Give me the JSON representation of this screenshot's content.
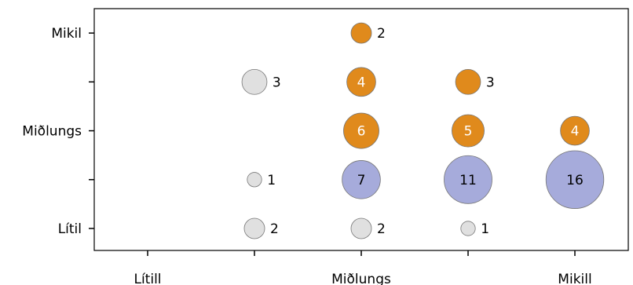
{
  "chart_data": {
    "type": "scatter",
    "subtype": "bubble",
    "x_ticks": [
      {
        "value": 1,
        "label": "Lítill"
      },
      {
        "value": 2,
        "label": ""
      },
      {
        "value": 3,
        "label": "Miðlungs"
      },
      {
        "value": 4,
        "label": ""
      },
      {
        "value": 5,
        "label": "Mikill"
      }
    ],
    "y_ticks": [
      {
        "value": 1,
        "label": "Lítil"
      },
      {
        "value": 2,
        "label": ""
      },
      {
        "value": 3,
        "label": "Miðlungs"
      },
      {
        "value": 4,
        "label": ""
      },
      {
        "value": 5,
        "label": "Mikil"
      }
    ],
    "xlim": [
      0.5,
      5.5
    ],
    "ylim": [
      0.55,
      5.5
    ],
    "grid": false,
    "colors": {
      "gray": "#e0e0e0",
      "orange": "#e08a1c",
      "blue": "#a6abdb",
      "outline": "#777777"
    },
    "points": [
      {
        "x": 3,
        "y": 5,
        "size": 2,
        "color": "orange",
        "label": "2",
        "label_position": "right"
      },
      {
        "x": 2,
        "y": 4,
        "size": 3,
        "color": "gray",
        "label": "3",
        "label_position": "right"
      },
      {
        "x": 3,
        "y": 4,
        "size": 4,
        "color": "orange",
        "label": "4",
        "label_position": "inside"
      },
      {
        "x": 4,
        "y": 4,
        "size": 3,
        "color": "orange",
        "label": "3",
        "label_position": "right"
      },
      {
        "x": 3,
        "y": 3,
        "size": 6,
        "color": "orange",
        "label": "6",
        "label_position": "inside"
      },
      {
        "x": 4,
        "y": 3,
        "size": 5,
        "color": "orange",
        "label": "5",
        "label_position": "inside"
      },
      {
        "x": 5,
        "y": 3,
        "size": 4,
        "color": "orange",
        "label": "4",
        "label_position": "inside"
      },
      {
        "x": 2,
        "y": 2,
        "size": 1,
        "color": "gray",
        "label": "1",
        "label_position": "right"
      },
      {
        "x": 3,
        "y": 2,
        "size": 7,
        "color": "blue",
        "label": "7",
        "label_position": "inside"
      },
      {
        "x": 4,
        "y": 2,
        "size": 11,
        "color": "blue",
        "label": "11",
        "label_position": "inside"
      },
      {
        "x": 5,
        "y": 2,
        "size": 16,
        "color": "blue",
        "label": "16",
        "label_position": "inside"
      },
      {
        "x": 2,
        "y": 1,
        "size": 2,
        "color": "gray",
        "label": "2",
        "label_position": "right"
      },
      {
        "x": 3,
        "y": 1,
        "size": 2,
        "color": "gray",
        "label": "2",
        "label_position": "right"
      },
      {
        "x": 4,
        "y": 1,
        "size": 1,
        "color": "gray",
        "label": "1",
        "label_position": "right"
      }
    ]
  }
}
